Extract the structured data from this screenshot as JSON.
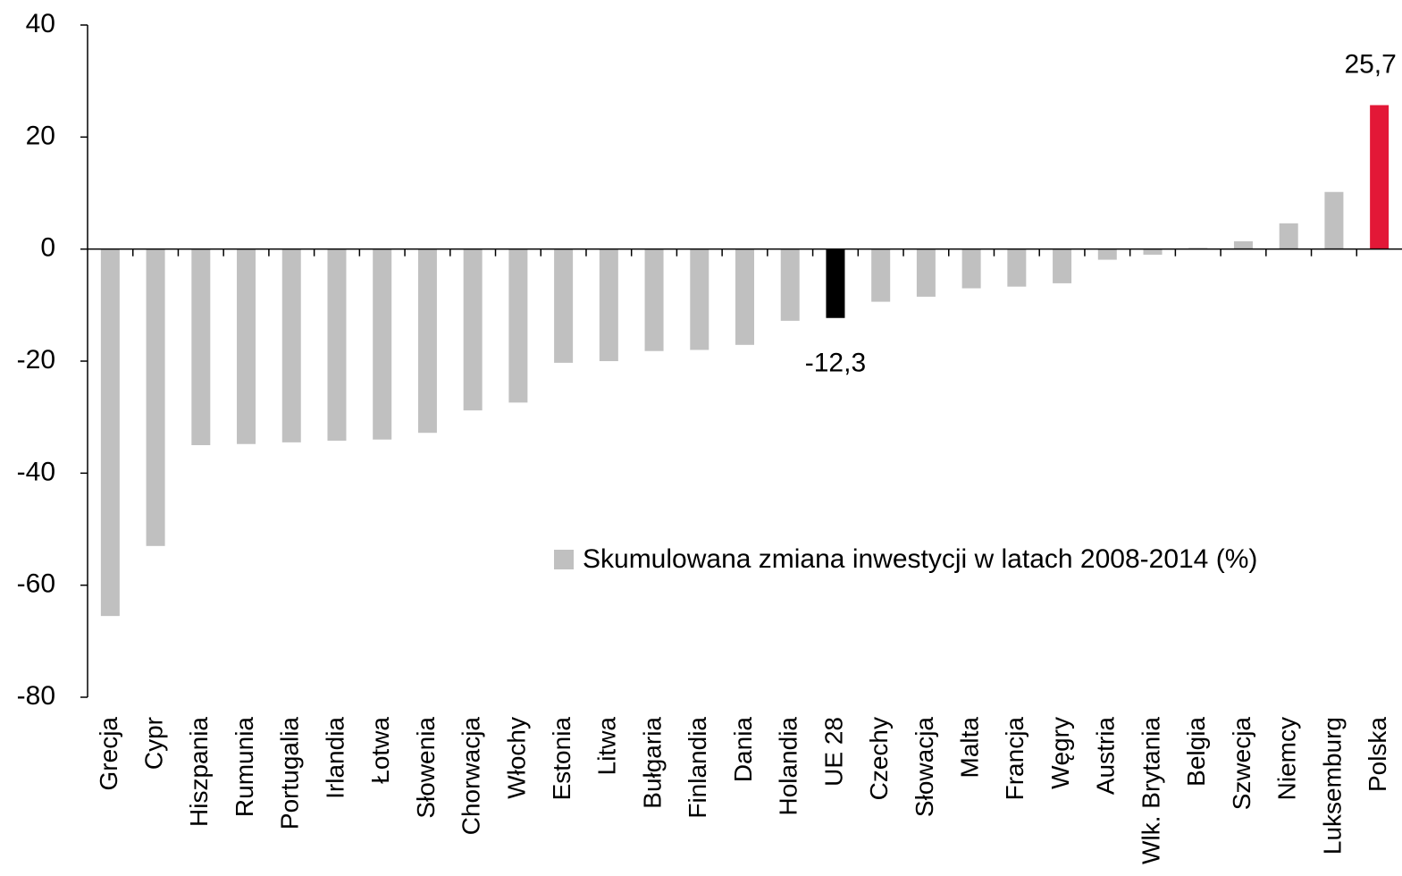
{
  "chart_data": {
    "type": "bar",
    "categories": [
      "Grecja",
      "Cypr",
      "Hiszpania",
      "Rumunia",
      "Portugalia",
      "Irlandia",
      "Łotwa",
      "Słowenia",
      "Chorwacja",
      "Włochy",
      "Estonia",
      "Litwa",
      "Bułgaria",
      "Finlandia",
      "Dania",
      "Holandia",
      "UE 28",
      "Czechy",
      "Słowacja",
      "Malta",
      "Francja",
      "Węgry",
      "Austria",
      "Wlk. Brytania",
      "Belgia",
      "Szwecja",
      "Niemcy",
      "Luksemburg",
      "Polska"
    ],
    "series": [
      {
        "name": "Skumulowana zmiana inwestycji w latach 2008-2014 (%)",
        "color": "#c0c0c0",
        "values": [
          -65.5,
          -53,
          -35,
          -34.8,
          -34.5,
          -34.2,
          -34,
          -32.8,
          -28.8,
          -27.4,
          -20.3,
          -20,
          -18.2,
          -18,
          -17.1,
          -12.8,
          -12.3,
          -9.4,
          -8.5,
          -7,
          -6.7,
          -6.1,
          -1.9,
          -1,
          0.2,
          1.4,
          4.6,
          10.2,
          25.7
        ],
        "value_labels": [
          null,
          null,
          null,
          null,
          null,
          null,
          null,
          null,
          null,
          null,
          null,
          null,
          null,
          null,
          null,
          null,
          "-12,3",
          null,
          null,
          null,
          null,
          null,
          null,
          null,
          null,
          null,
          null,
          null,
          "25,7"
        ],
        "colors": [
          "#c0c0c0",
          "#c0c0c0",
          "#c0c0c0",
          "#c0c0c0",
          "#c0c0c0",
          "#c0c0c0",
          "#c0c0c0",
          "#c0c0c0",
          "#c0c0c0",
          "#c0c0c0",
          "#c0c0c0",
          "#c0c0c0",
          "#c0c0c0",
          "#c0c0c0",
          "#c0c0c0",
          "#c0c0c0",
          "#000000",
          "#c0c0c0",
          "#c0c0c0",
          "#c0c0c0",
          "#c0c0c0",
          "#c0c0c0",
          "#c0c0c0",
          "#c0c0c0",
          "#c0c0c0",
          "#c0c0c0",
          "#c0c0c0",
          "#c0c0c0",
          "#e31837"
        ]
      }
    ],
    "ylim": [
      -80,
      40
    ],
    "yticks": [
      -80,
      -60,
      -40,
      -20,
      0,
      20,
      40
    ],
    "grid": false,
    "legend": "right"
  }
}
